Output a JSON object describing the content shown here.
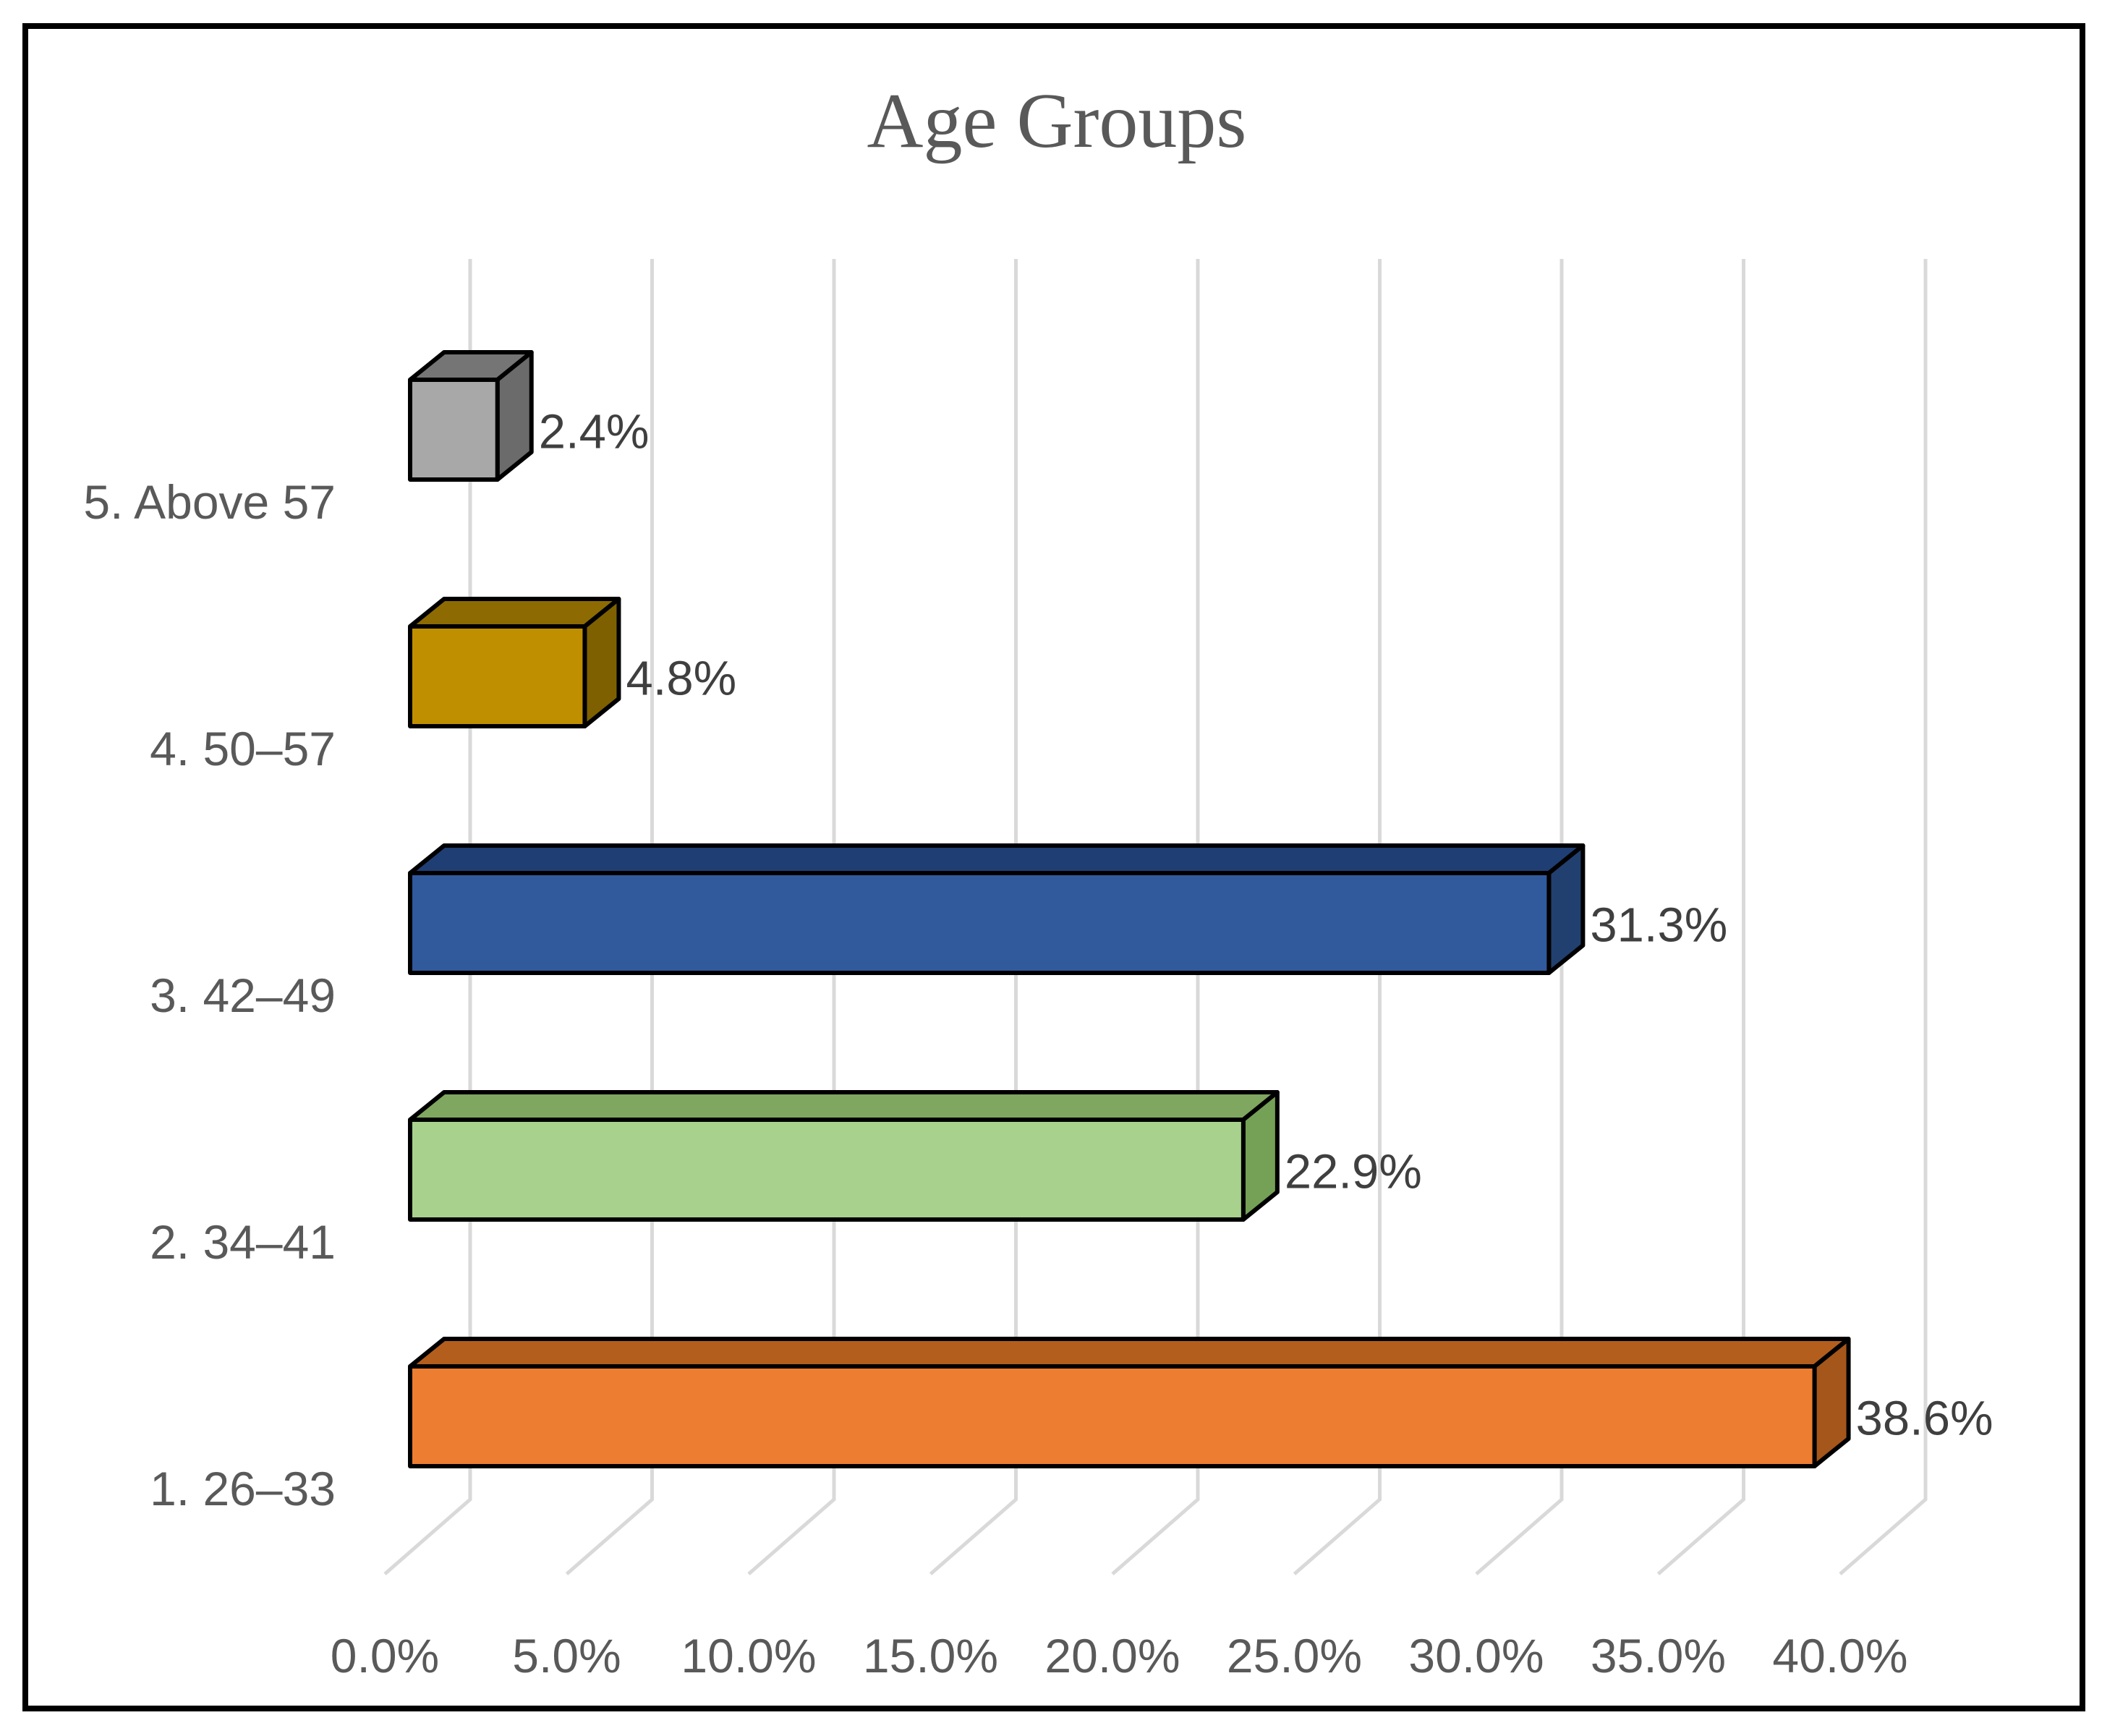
{
  "chart_data": {
    "type": "bar",
    "effect": "3d",
    "orientation": "horizontal",
    "title": "Age Groups",
    "categories": [
      "1. 26–33",
      "2. 34–41",
      "3. 42–49",
      "4. 50–57",
      "5. Above 57"
    ],
    "values": [
      38.6,
      22.9,
      31.3,
      4.8,
      2.4
    ],
    "data_labels": [
      "38.6%",
      "22.9%",
      "31.3%",
      "4.8%",
      "2.4%"
    ],
    "display_order_top_to_bottom": [
      "5. Above 57",
      "4. 50–57",
      "3. 42–49",
      "2. 34–41",
      "1. 26–33"
    ],
    "x_tick_labels": [
      "0.0%",
      "5.0%",
      "10.0%",
      "15.0%",
      "20.0%",
      "25.0%",
      "30.0%",
      "35.0%",
      "40.0%"
    ],
    "xlim": [
      0,
      40
    ],
    "x_tick_step": 5,
    "grid": true,
    "legend": false,
    "bar_colors": [
      {
        "category": "1. 26–33",
        "front": "#ED7D31",
        "top": "#B45E1E",
        "side": "#A5561A"
      },
      {
        "category": "2. 34–41",
        "front": "#A9D18E",
        "top": "#7FA75F",
        "side": "#74A156"
      },
      {
        "category": "3. 42–49",
        "front": "#315A9D",
        "top": "#1F3E73",
        "side": "#22406F"
      },
      {
        "category": "4. 50–57",
        "front": "#BF8F00",
        "top": "#8D6B02",
        "side": "#7E6000"
      },
      {
        "category": "5. Above 57",
        "front": "#A8A8A8",
        "top": "#757575",
        "side": "#6B6B6B"
      }
    ],
    "outline_color": "#000000",
    "gridline_color": "#D9D9D9",
    "title_color": "#595959",
    "label_color": "#595959",
    "value_label_color": "#3F3F3F",
    "frame_color": "#000000",
    "background_color": "#FFFFFF"
  }
}
